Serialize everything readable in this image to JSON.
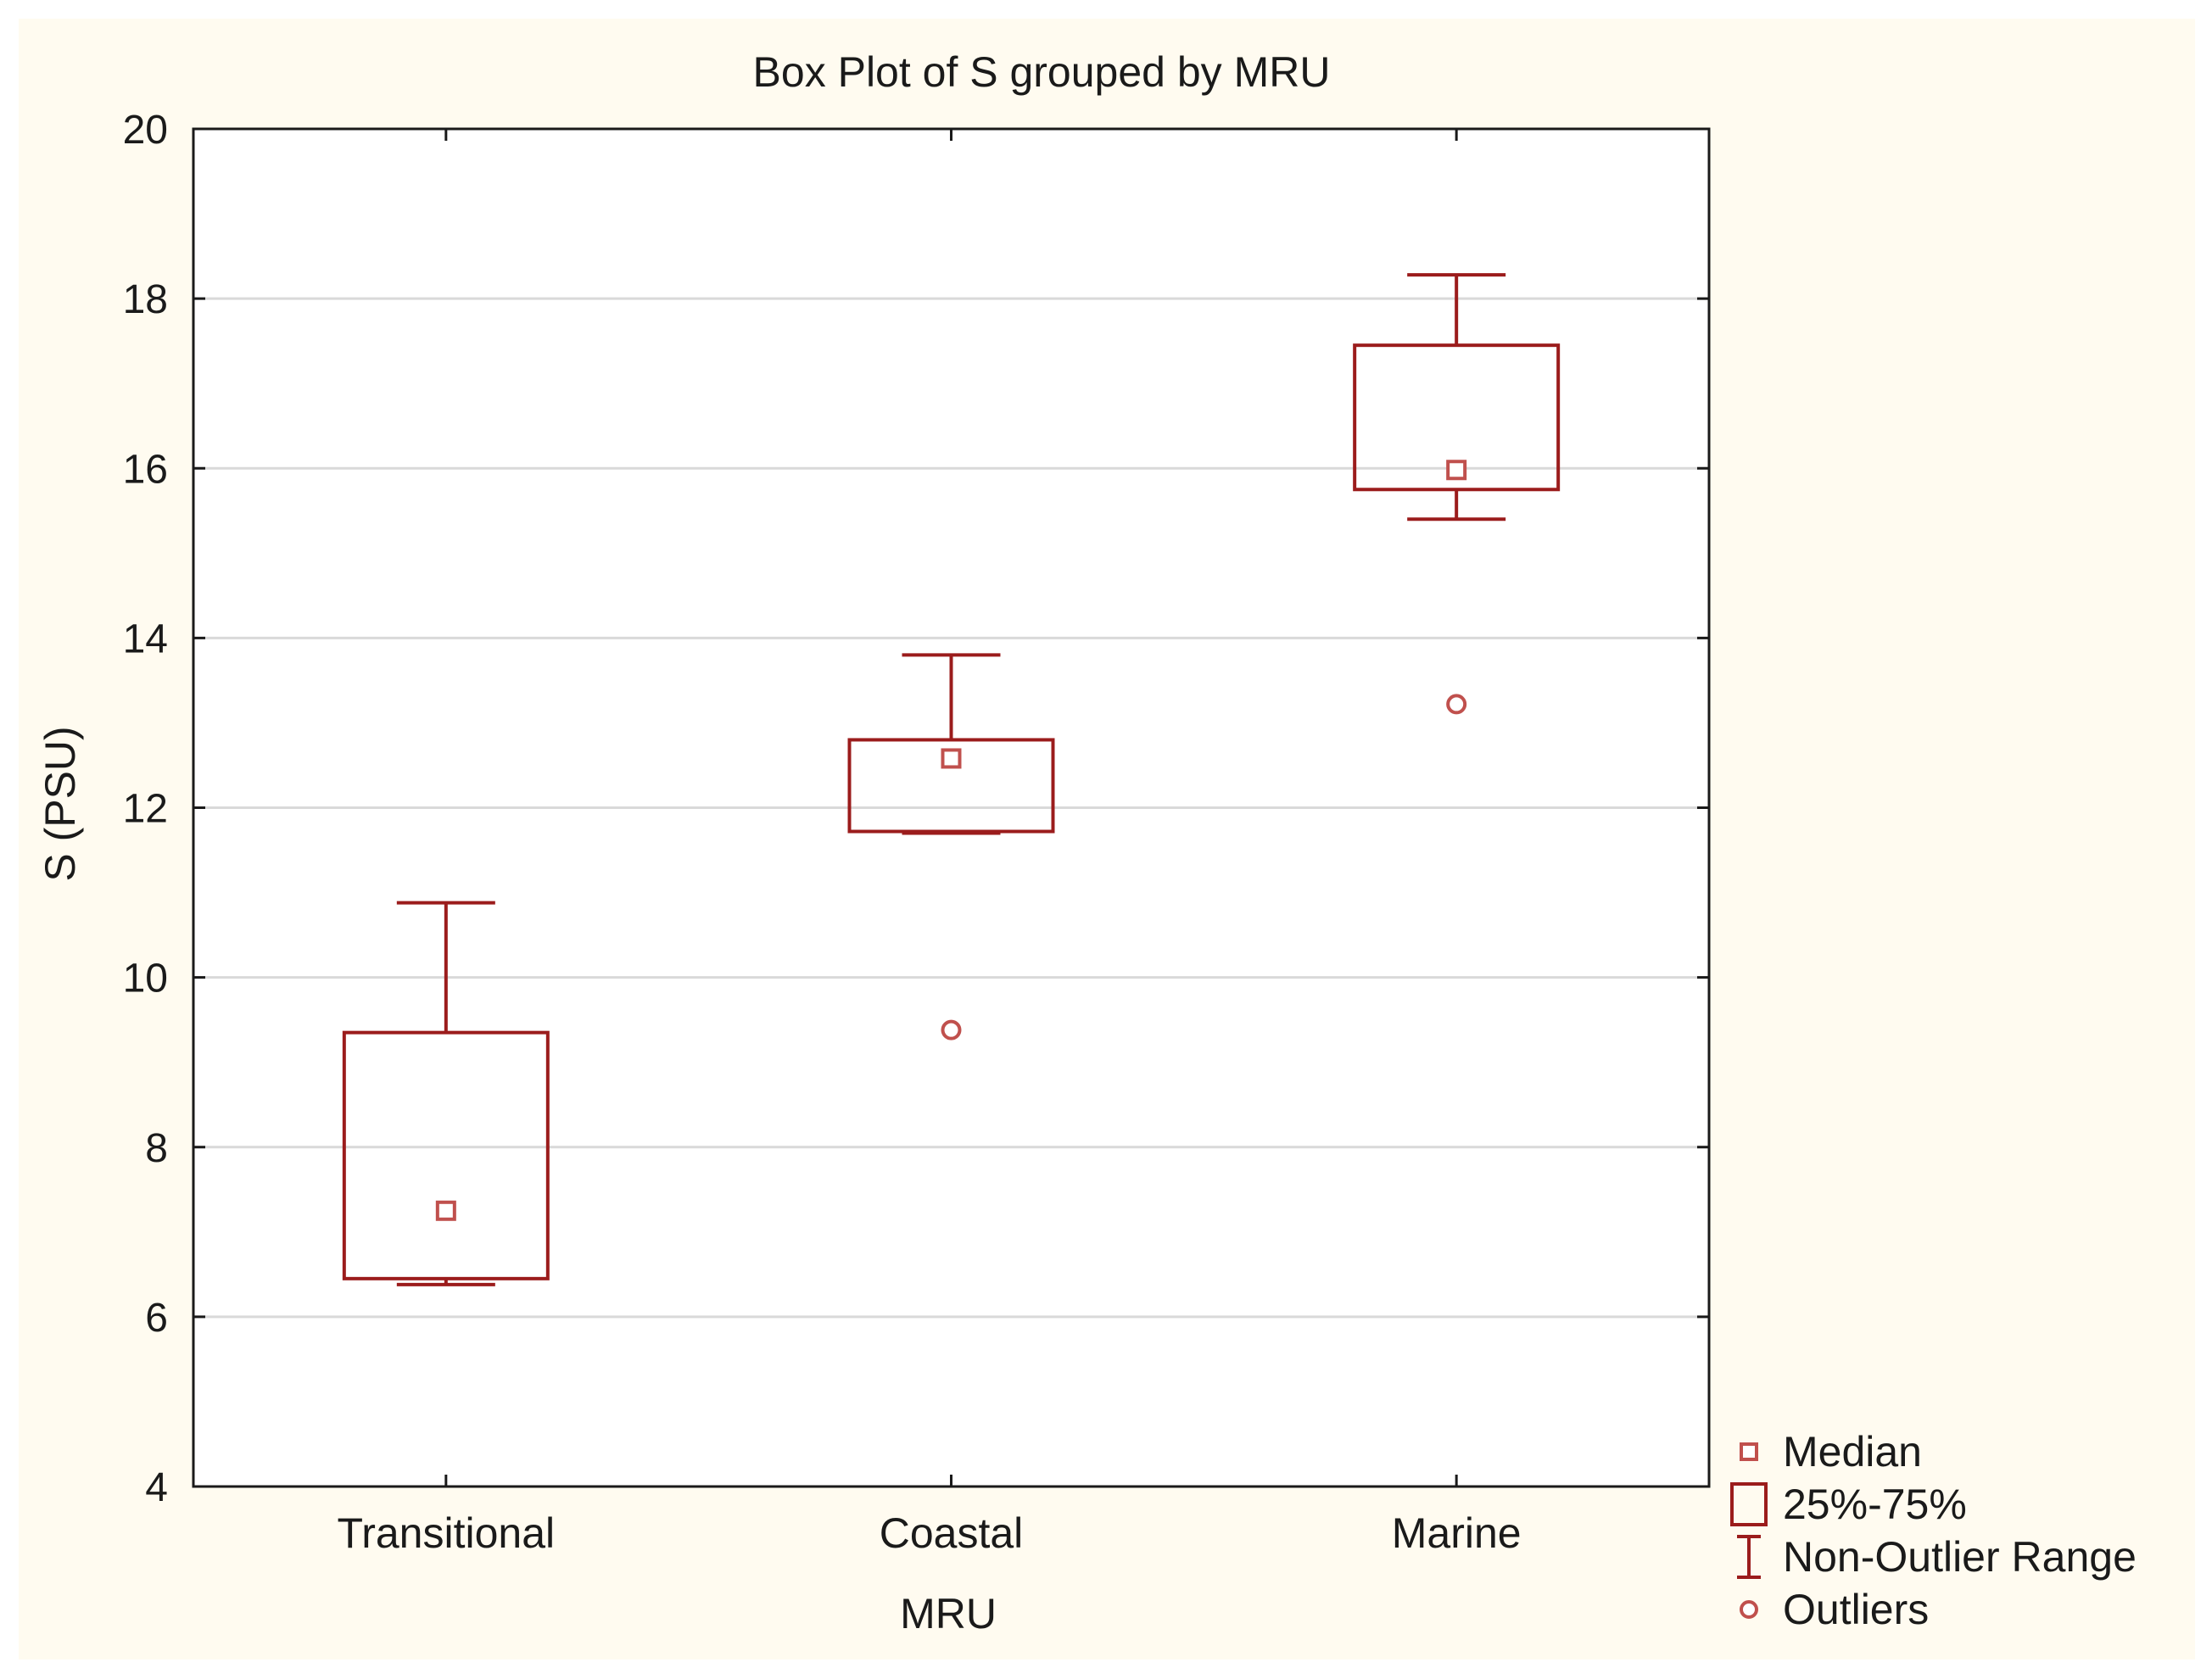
{
  "chart_data": {
    "type": "box",
    "title": "Box Plot of S grouped by MRU",
    "xlabel": "MRU",
    "ylabel": "S (PSU)",
    "ylim": [
      4,
      20
    ],
    "yticks": [
      4,
      6,
      8,
      10,
      12,
      14,
      16,
      18,
      20
    ],
    "grid": true,
    "categories": [
      "Transitional",
      "Coastal",
      "Marine"
    ],
    "boxes": [
      {
        "category": "Transitional",
        "median": 7.25,
        "q1": 6.45,
        "q3": 9.35,
        "whisker_low": 6.38,
        "whisker_high": 10.88,
        "outliers": []
      },
      {
        "category": "Coastal",
        "median": 12.58,
        "q1": 11.72,
        "q3": 12.8,
        "whisker_low": 11.7,
        "whisker_high": 13.8,
        "outliers": [
          9.38
        ]
      },
      {
        "category": "Marine",
        "median": 15.98,
        "q1": 15.75,
        "q3": 17.45,
        "whisker_low": 15.4,
        "whisker_high": 18.28,
        "outliers": [
          13.22
        ]
      }
    ],
    "legend": {
      "placement": "bottom-right",
      "entries": [
        "Median",
        "25%-75%",
        "Non-Outlier Range",
        "Outliers"
      ]
    },
    "colors": {
      "box": "#9b1c1c",
      "median_marker": "#c0504d",
      "grid": "#d9d9d9",
      "plot_background": "#ffffff",
      "figure_background": "#fffbf0",
      "axis": "#1a1a1a"
    }
  }
}
